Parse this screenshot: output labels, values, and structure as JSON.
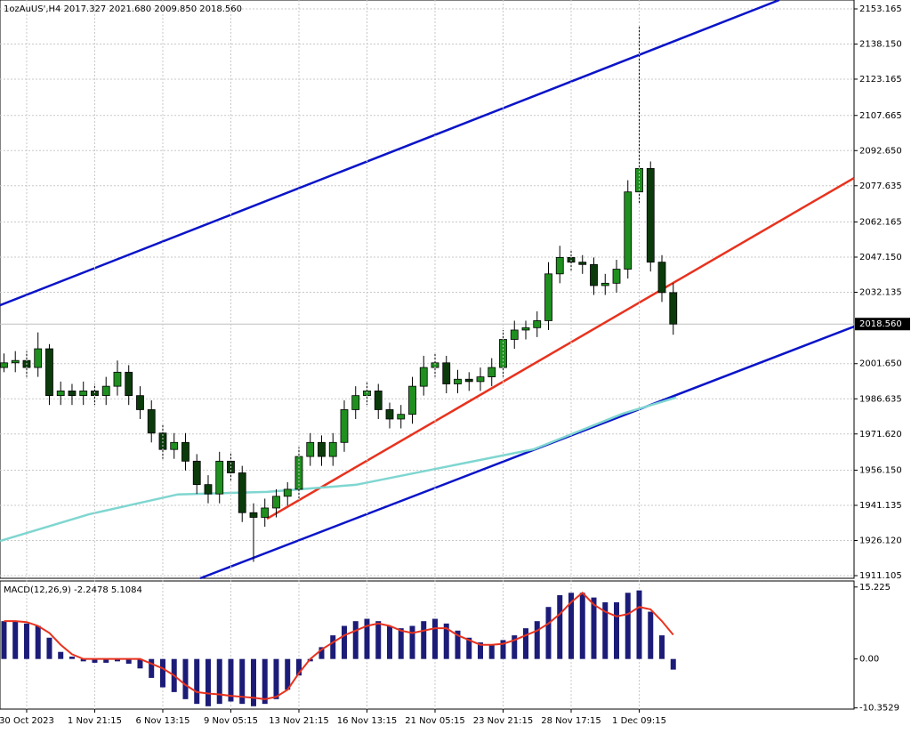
{
  "chart_data": [
    {
      "type": "candlestick",
      "title": "1ozAuUS',H4  2017.327 2021.680 2009.850 2018.560",
      "xlim": [
        -0.35,
        74.94
      ],
      "ylim": [
        1909.97,
        2156.97
      ],
      "grid": true,
      "yticks": [
        2153.165,
        {
          "value": 2138.15,
          "label": "2138.150"
        },
        2123.165,
        2107.665,
        {
          "value": 2092.65,
          "label": "2092.650"
        },
        2077.635,
        2062.165,
        {
          "value": 2047.15,
          "label": "2047.150"
        },
        2032.135,
        {
          "value": 2001.65,
          "label": "2001.650"
        },
        1986.635,
        {
          "value": 1971.62,
          "label": "1971.620"
        },
        {
          "value": 1956.15,
          "label": "1956.150"
        },
        1941.135,
        {
          "value": 1926.12,
          "label": "1926.120"
        },
        1911.105
      ],
      "colors": {
        "up": "#1f8f1f",
        "down": "#0b3b0b",
        "outline": "#000000"
      },
      "open": [
        2000,
        2002,
        2003,
        2000,
        2008,
        1988,
        1990,
        1988,
        1990,
        1988,
        1992,
        1998,
        1988,
        1982,
        1972,
        1965,
        1968,
        1960,
        1950,
        1946,
        1960,
        1955,
        1938,
        1936,
        1940,
        1945,
        1948,
        1962,
        1968,
        1962,
        1968,
        1982,
        1988,
        1990,
        1982,
        1978,
        1980,
        1992,
        2000,
        2002,
        1993,
        1995,
        1994,
        1996,
        2000,
        2012,
        2016,
        2017,
        2020,
        2040,
        2047,
        2045,
        2044,
        2035,
        2036,
        2042,
        2075,
        2085,
        2045,
        2032
      ],
      "high": [
        2006,
        2007,
        2007,
        2015,
        2010,
        1994,
        1993,
        1994,
        1993,
        1996,
        2003,
        2001,
        1992,
        1986,
        1976,
        1972,
        1972,
        1963,
        1954,
        1964,
        1964,
        1958,
        1942,
        1944,
        1948,
        1951,
        1966,
        1972,
        1971,
        1972,
        1986,
        1992,
        1994,
        1993,
        1985,
        1984,
        1996,
        2005,
        2006,
        2005,
        1999,
        1998,
        2000,
        2004,
        2016,
        2020,
        2020,
        2024,
        2045,
        2052,
        2050,
        2048,
        2047,
        2040,
        2046,
        2080,
        2146,
        2088,
        2048,
        2036
      ],
      "low": [
        1998,
        1998,
        1996,
        1996,
        1984,
        1984,
        1984,
        1984,
        1984,
        1984,
        1988,
        1984,
        1978,
        1968,
        1961,
        1961,
        1956,
        1946,
        1942,
        1942,
        1951,
        1934,
        1917,
        1932,
        1936,
        1941,
        1944,
        1958,
        1958,
        1958,
        1964,
        1978,
        1984,
        1978,
        1974,
        1974,
        1976,
        1988,
        1996,
        1989,
        1989,
        1990,
        1990,
        1992,
        1996,
        2008,
        2012,
        2013,
        2016,
        2036,
        2041,
        2040,
        2031,
        2031,
        2032,
        2038,
        2070,
        2041,
        2028,
        2014
      ],
      "close": [
        2002,
        2003,
        2000,
        2008,
        1988,
        1990,
        1988,
        1990,
        1988,
        1992,
        1998,
        1988,
        1982,
        1972,
        1965,
        1968,
        1960,
        1950,
        1946,
        1960,
        1955,
        1938,
        1936,
        1940,
        1945,
        1948,
        1962,
        1968,
        1962,
        1968,
        1982,
        1988,
        1990,
        1982,
        1978,
        1980,
        1992,
        2000,
        2002,
        1993,
        1995,
        1994,
        1996,
        2000,
        2012,
        2016,
        2017,
        2020,
        2040,
        2047,
        2045,
        2044,
        2035,
        2036,
        2042,
        2075,
        2085,
        2045,
        2032,
        2018.56
      ],
      "lines": [
        {
          "color": "#0a14c8",
          "x": [
            -0.35,
            68.35
          ],
          "values": [
            2026.6,
            2156.97
          ]
        },
        {
          "color": "#0a14c8",
          "x": [
            17.3,
            74.94
          ],
          "values": [
            1909.97,
            2017.5
          ]
        },
        {
          "color": "#e8321e",
          "x": [
            23.18,
            74.94
          ],
          "values": [
            1935.4,
            2080.96
          ]
        },
        {
          "color": "#7fd6d0",
          "x": [
            -0.35,
            7.49,
            15.33,
            23.18,
            31.02,
            38.86,
            46.71,
            54.55,
            59.25
          ],
          "values": [
            1925.9,
            1937.3,
            1945.8,
            1946.9,
            1949.9,
            1957.5,
            1965.1,
            1980.3,
            1987.2
          ]
        }
      ],
      "current_price": {
        "value": 2018.56,
        "label": "2018.560"
      }
    },
    {
      "type": "macd",
      "title": "MACD(12,26,9) -2.2478 5.1084",
      "xlim": [
        -0.35,
        74.94
      ],
      "ylim": [
        -10.6,
        16.5
      ],
      "yticks": [
        15.225,
        {
          "value": 0,
          "label": "0.00"
        },
        -10.3529
      ],
      "xticks": [
        {
          "value": 2,
          "label": "30 Oct 2023"
        },
        {
          "value": 8,
          "label": "1 Nov 21:15"
        },
        {
          "value": 14,
          "label": "6 Nov 13:15"
        },
        {
          "value": 20,
          "label": "9 Nov 05:15"
        },
        {
          "value": 26,
          "label": "13 Nov 21:15"
        },
        {
          "value": 32,
          "label": "16 Nov 13:15"
        },
        {
          "value": 38,
          "label": "21 Nov 05:15"
        },
        {
          "value": 44,
          "label": "23 Nov 21:15"
        },
        {
          "value": 50,
          "label": "28 Nov 17:15"
        },
        {
          "value": 56,
          "label": "1 Dec 09:15"
        }
      ],
      "histogram": {
        "color": "#1c1c78",
        "values": [
          8,
          8,
          7.5,
          7,
          4.5,
          1.5,
          0.5,
          -0.5,
          -0.8,
          -0.8,
          -0.5,
          -1,
          -2,
          -4,
          -6,
          -7,
          -8.5,
          -9.5,
          -10,
          -9.5,
          -9,
          -9.5,
          -10,
          -9.5,
          -8.5,
          -6.5,
          -3.5,
          -0.5,
          2.5,
          5,
          7,
          8,
          8.5,
          8,
          7,
          6.5,
          7,
          8,
          8.5,
          7.5,
          6,
          4.5,
          3.5,
          3,
          4,
          5,
          6.5,
          8,
          11,
          13.5,
          14,
          14,
          13,
          12,
          12,
          14,
          14.5,
          10,
          5,
          -2.2478
        ]
      },
      "signal": {
        "color": "#e8321e",
        "values": [
          8,
          8,
          7.8,
          7,
          5.5,
          3,
          1,
          0,
          0,
          0,
          0,
          0,
          0,
          -1,
          -2,
          -3.5,
          -5.5,
          -7,
          -7.3,
          -7.5,
          -7.8,
          -8,
          -8.2,
          -8.5,
          -8,
          -6.5,
          -3,
          0,
          2,
          3.5,
          5,
          6,
          7,
          7.5,
          7,
          6,
          5.5,
          6,
          6.5,
          6.5,
          5,
          4,
          3,
          3,
          3.2,
          4,
          5,
          6,
          7.5,
          9.5,
          12,
          14,
          11.5,
          10,
          9,
          9.5,
          11,
          10.5,
          8,
          5.1084
        ]
      }
    }
  ]
}
